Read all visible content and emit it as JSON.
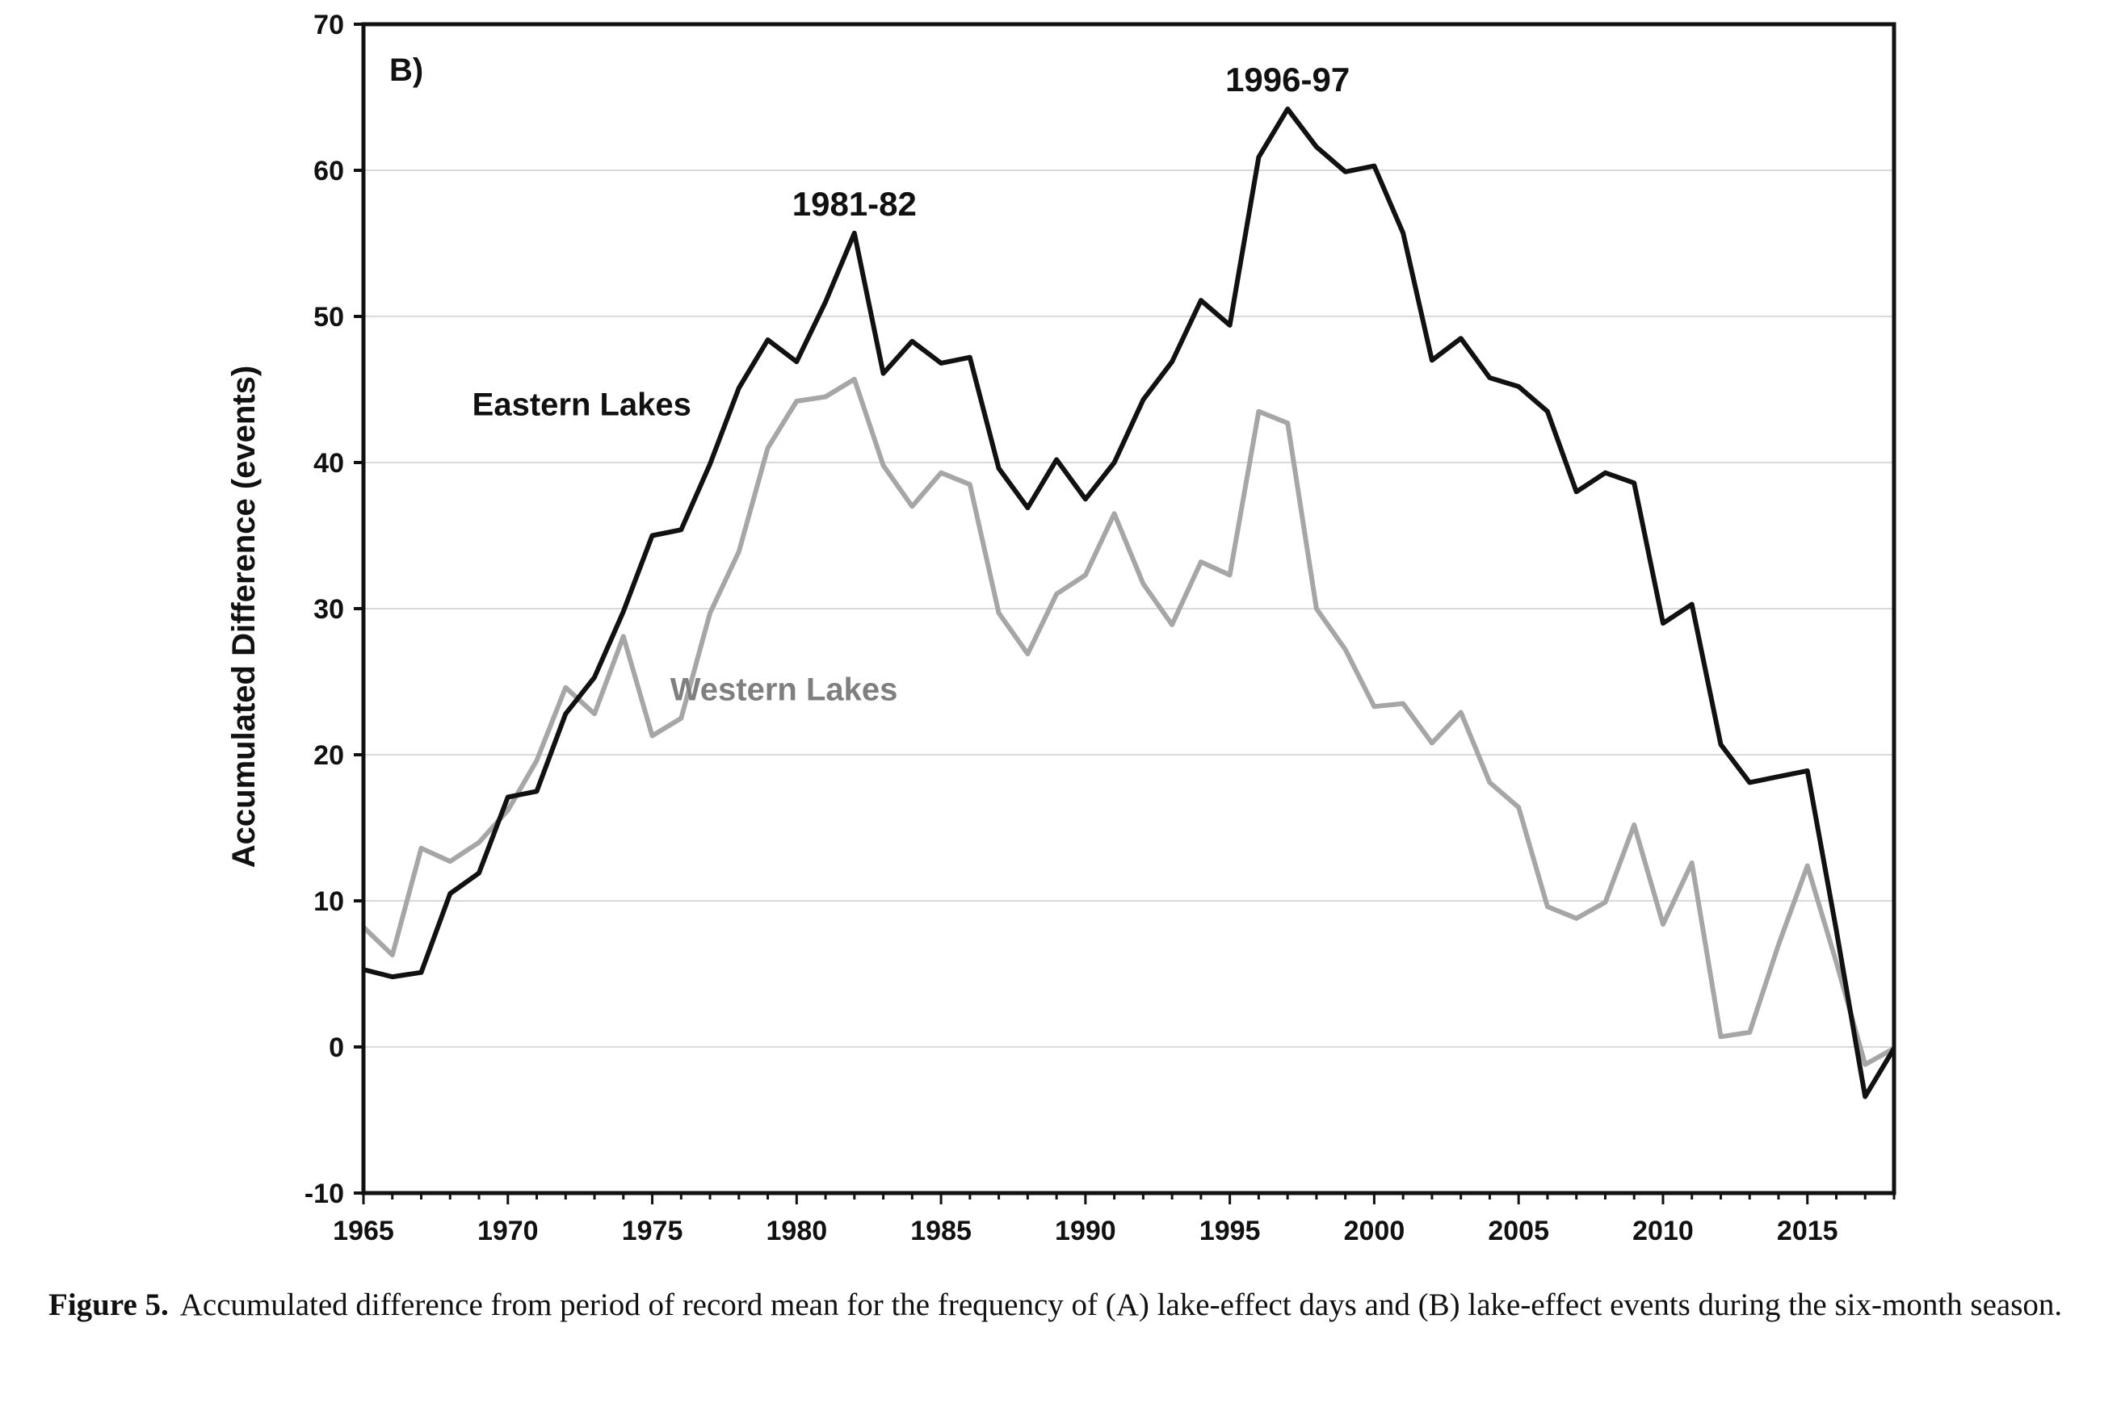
{
  "caption": {
    "label": "Figure 5.",
    "text": "Accumulated difference from period of record mean for the frequency of (A) lake-effect days and (B) lake-effect events during the six-month season."
  },
  "chart_data": {
    "type": "line",
    "panel_label": "B)",
    "ylabel": "Accumulated Difference (events)",
    "xlabel": "",
    "xlim": [
      1965,
      2018
    ],
    "ylim": [
      -10,
      70
    ],
    "x_ticks": [
      1965,
      1970,
      1975,
      1980,
      1985,
      1990,
      1995,
      2000,
      2005,
      2010,
      2015
    ],
    "y_ticks": [
      -10,
      0,
      10,
      20,
      30,
      40,
      50,
      60,
      70
    ],
    "grid": true,
    "annotations": [
      {
        "text": "1981-82",
        "x": 1982,
        "y": 55.7
      },
      {
        "text": "1996-97",
        "x": 1997,
        "y": 64.2
      }
    ],
    "x": [
      1965,
      1966,
      1967,
      1968,
      1969,
      1970,
      1971,
      1972,
      1973,
      1974,
      1975,
      1976,
      1977,
      1978,
      1979,
      1980,
      1981,
      1982,
      1983,
      1984,
      1985,
      1986,
      1987,
      1988,
      1989,
      1990,
      1991,
      1992,
      1993,
      1994,
      1995,
      1996,
      1997,
      1998,
      1999,
      2000,
      2001,
      2002,
      2003,
      2004,
      2005,
      2006,
      2007,
      2008,
      2009,
      2010,
      2011,
      2012,
      2013,
      2014,
      2015,
      2016,
      2017,
      2018
    ],
    "series": [
      {
        "name": "Eastern Lakes",
        "color": "#111111",
        "values": [
          5.3,
          4.8,
          5.1,
          10.5,
          11.9,
          17.1,
          17.5,
          22.8,
          25.3,
          29.8,
          35.0,
          35.4,
          39.9,
          45.1,
          48.4,
          46.9,
          51.0,
          55.7,
          46.1,
          48.3,
          46.8,
          47.2,
          39.6,
          36.9,
          40.2,
          37.5,
          40.0,
          44.3,
          46.9,
          51.1,
          49.4,
          60.9,
          64.2,
          61.6,
          59.9,
          60.3,
          55.7,
          47.0,
          48.5,
          45.8,
          45.2,
          43.5,
          38.0,
          39.3,
          38.6,
          29.0,
          30.3,
          20.7,
          18.1,
          18.5,
          18.9,
          8.0,
          -3.4,
          -0.1
        ]
      },
      {
        "name": "Western Lakes",
        "color": "#a6a6a6",
        "values": [
          8.2,
          6.3,
          13.6,
          12.7,
          14.0,
          16.2,
          19.6,
          24.6,
          22.8,
          28.1,
          21.3,
          22.5,
          29.7,
          33.9,
          41.0,
          44.2,
          44.5,
          45.7,
          39.8,
          37.0,
          39.3,
          38.5,
          29.7,
          26.9,
          31.0,
          32.3,
          36.5,
          31.7,
          28.9,
          33.2,
          32.3,
          43.5,
          42.7,
          30.0,
          27.2,
          23.3,
          23.5,
          20.8,
          22.9,
          18.1,
          16.4,
          9.6,
          8.8,
          9.9,
          15.2,
          8.4,
          12.6,
          0.7,
          1.0,
          7.0,
          12.4,
          5.8,
          -1.2,
          -0.1
        ]
      }
    ]
  }
}
